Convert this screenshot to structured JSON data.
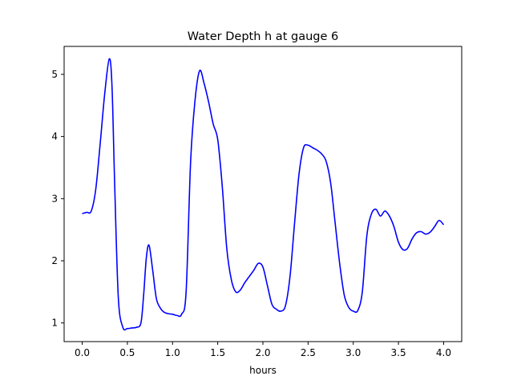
{
  "chart_data": {
    "type": "line",
    "title": "Water Depth h at gauge 6",
    "xlabel": "hours",
    "ylabel": "",
    "xlim": [
      -0.2,
      4.2
    ],
    "ylim": [
      0.7,
      5.45
    ],
    "xticks": [
      "0.0",
      "0.5",
      "1.0",
      "1.5",
      "2.0",
      "2.5",
      "3.0",
      "3.5",
      "4.0"
    ],
    "yticks": [
      "1",
      "2",
      "3",
      "4",
      "5"
    ],
    "grid": false,
    "legend": "none",
    "series": [
      {
        "color": "#0000ff",
        "x": [
          0.0,
          0.05,
          0.1,
          0.15,
          0.2,
          0.25,
          0.3,
          0.33,
          0.36,
          0.4,
          0.45,
          0.5,
          0.55,
          0.6,
          0.65,
          0.68,
          0.71,
          0.74,
          0.78,
          0.82,
          0.86,
          0.9,
          0.95,
          1.0,
          1.05,
          1.1,
          1.15,
          1.2,
          1.25,
          1.3,
          1.35,
          1.4,
          1.45,
          1.5,
          1.55,
          1.6,
          1.65,
          1.7,
          1.75,
          1.8,
          1.85,
          1.9,
          1.95,
          2.0,
          2.05,
          2.1,
          2.15,
          2.2,
          2.25,
          2.3,
          2.35,
          2.4,
          2.45,
          2.5,
          2.55,
          2.6,
          2.65,
          2.7,
          2.75,
          2.8,
          2.85,
          2.9,
          2.95,
          3.0,
          3.05,
          3.1,
          3.15,
          3.2,
          3.25,
          3.3,
          3.35,
          3.4,
          3.45,
          3.5,
          3.55,
          3.6,
          3.65,
          3.7,
          3.75,
          3.8,
          3.85,
          3.9,
          3.95,
          4.0
        ],
        "y": [
          2.76,
          2.78,
          2.8,
          3.15,
          3.9,
          4.7,
          5.25,
          4.8,
          3.2,
          1.4,
          0.93,
          0.91,
          0.92,
          0.93,
          1.0,
          1.45,
          2.05,
          2.25,
          1.85,
          1.4,
          1.25,
          1.18,
          1.15,
          1.14,
          1.12,
          1.14,
          1.5,
          3.6,
          4.6,
          5.06,
          4.85,
          4.55,
          4.2,
          3.95,
          3.2,
          2.2,
          1.7,
          1.5,
          1.53,
          1.65,
          1.75,
          1.85,
          1.96,
          1.9,
          1.6,
          1.3,
          1.22,
          1.19,
          1.28,
          1.75,
          2.6,
          3.4,
          3.82,
          3.86,
          3.82,
          3.78,
          3.72,
          3.6,
          3.25,
          2.6,
          1.95,
          1.45,
          1.25,
          1.19,
          1.2,
          1.5,
          2.4,
          2.75,
          2.83,
          2.72,
          2.8,
          2.72,
          2.55,
          2.3,
          2.18,
          2.2,
          2.35,
          2.45,
          2.47,
          2.43,
          2.46,
          2.55,
          2.65,
          2.58
        ]
      }
    ]
  }
}
